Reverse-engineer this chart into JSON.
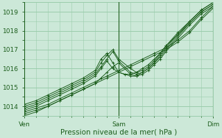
{
  "background_color": "#cce8d8",
  "plot_bg_color": "#cce8d8",
  "grid_color": "#99ccaa",
  "line_color": "#1a5c1a",
  "title": "Pression niveau de la mer( hPa )",
  "x_ticks": [
    0,
    48,
    96
  ],
  "x_tick_labels": [
    "Ven",
    "Sam",
    "Dim"
  ],
  "ylim": [
    1013.5,
    1019.5
  ],
  "yticks": [
    1014,
    1015,
    1016,
    1017,
    1018,
    1019
  ],
  "xlim": [
    0,
    96
  ],
  "series": [
    {
      "x": [
        0,
        6,
        12,
        18,
        24,
        30,
        36,
        42,
        48,
        54,
        60,
        66,
        72,
        78,
        84,
        90,
        96
      ],
      "y": [
        1013.7,
        1013.9,
        1014.1,
        1014.4,
        1014.7,
        1015.0,
        1015.3,
        1015.6,
        1015.9,
        1016.2,
        1016.5,
        1016.8,
        1017.1,
        1017.5,
        1018.0,
        1018.7,
        1019.3
      ]
    },
    {
      "x": [
        0,
        6,
        12,
        18,
        24,
        30,
        36,
        42,
        48,
        54,
        60,
        66,
        72,
        78,
        84,
        90,
        96
      ],
      "y": [
        1013.6,
        1013.8,
        1014.0,
        1014.3,
        1014.6,
        1014.9,
        1015.2,
        1015.5,
        1015.8,
        1016.1,
        1016.4,
        1016.7,
        1017.0,
        1017.4,
        1017.9,
        1018.6,
        1019.2
      ]
    },
    {
      "x": [
        0,
        6,
        12,
        18,
        24,
        30,
        36,
        39,
        42,
        45,
        48,
        54,
        57,
        60,
        63,
        66,
        69,
        72,
        78,
        84,
        90,
        96
      ],
      "y": [
        1013.9,
        1014.1,
        1014.4,
        1014.7,
        1015.0,
        1015.3,
        1015.7,
        1016.1,
        1016.5,
        1016.9,
        1016.4,
        1015.8,
        1015.7,
        1015.8,
        1016.0,
        1016.3,
        1016.7,
        1017.1,
        1017.8,
        1018.4,
        1019.0,
        1019.4
      ]
    },
    {
      "x": [
        0,
        6,
        12,
        18,
        24,
        30,
        36,
        39,
        42,
        45,
        48,
        54,
        57,
        60,
        63,
        66,
        69,
        72,
        78,
        84,
        90,
        96
      ],
      "y": [
        1014.0,
        1014.2,
        1014.5,
        1014.8,
        1015.1,
        1015.4,
        1015.8,
        1016.3,
        1016.7,
        1017.0,
        1016.5,
        1016.0,
        1015.8,
        1015.9,
        1016.1,
        1016.4,
        1016.8,
        1017.2,
        1017.9,
        1018.5,
        1019.1,
        1019.5
      ]
    },
    {
      "x": [
        0,
        6,
        12,
        18,
        24,
        30,
        36,
        39,
        42,
        45,
        48,
        54,
        57,
        60,
        63,
        66,
        69,
        72,
        78,
        84,
        90,
        96
      ],
      "y": [
        1014.1,
        1014.3,
        1014.6,
        1014.9,
        1015.2,
        1015.5,
        1015.9,
        1016.5,
        1016.8,
        1016.3,
        1015.8,
        1015.6,
        1015.6,
        1015.8,
        1016.0,
        1016.3,
        1016.6,
        1017.0,
        1017.7,
        1018.4,
        1019.0,
        1019.4
      ]
    },
    {
      "x": [
        0,
        6,
        12,
        18,
        24,
        30,
        36,
        39,
        42,
        45,
        48,
        54,
        57,
        60,
        63,
        66,
        69,
        72,
        78,
        84,
        90,
        96
      ],
      "y": [
        1013.5,
        1013.7,
        1014.0,
        1014.3,
        1014.6,
        1014.9,
        1015.2,
        1015.5,
        1015.8,
        1016.1,
        1016.3,
        1015.7,
        1015.6,
        1015.7,
        1015.9,
        1016.2,
        1016.5,
        1016.9,
        1017.6,
        1018.3,
        1018.9,
        1019.3
      ]
    },
    {
      "x": [
        0,
        6,
        12,
        18,
        24,
        30,
        36,
        39,
        42,
        45,
        48,
        51,
        54,
        57,
        60,
        63,
        66,
        69,
        72,
        78,
        84,
        90,
        96
      ],
      "y": [
        1013.8,
        1014.0,
        1014.3,
        1014.6,
        1014.9,
        1015.2,
        1015.6,
        1016.0,
        1016.4,
        1016.0,
        1015.8,
        1015.7,
        1015.7,
        1015.8,
        1016.0,
        1016.2,
        1016.5,
        1016.8,
        1017.2,
        1017.8,
        1018.5,
        1019.1,
        1019.5
      ]
    }
  ]
}
